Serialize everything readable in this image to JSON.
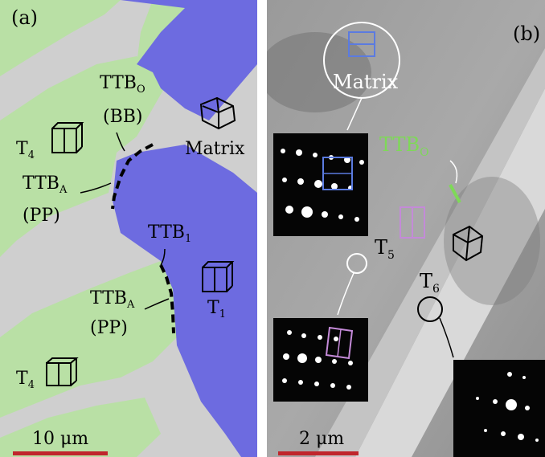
{
  "panel_a": {
    "label": "(a)",
    "scale_bar": "10 μm",
    "annotations": {
      "ttb_o": {
        "base": "TTB",
        "sub": "O"
      },
      "bb": "(BB)",
      "ttb_a_upper": {
        "base": "TTB",
        "sub": "A"
      },
      "pp_upper": "(PP)",
      "ttb_1": {
        "base": "TTB",
        "sub": "1"
      },
      "ttb_a_lower": {
        "base": "TTB",
        "sub": "A"
      },
      "pp_lower": "(PP)",
      "t4_upper": {
        "base": "T",
        "sub": "4"
      },
      "t4_lower": {
        "base": "T",
        "sub": "4"
      },
      "t1": {
        "base": "T",
        "sub": "1"
      },
      "matrix": "Matrix"
    },
    "colors": {
      "matrix_grain": "#6d6be0",
      "twin_grain": "#b9e0a5",
      "background": "#cfcfcf",
      "boundary": "#000000"
    }
  },
  "panel_b": {
    "label": "(b)",
    "scale_bar": "2 μm",
    "annotations": {
      "matrix": "Matrix",
      "ttb_o": {
        "base": "TTB",
        "sub": "O"
      },
      "t5": {
        "base": "T",
        "sub": "5"
      },
      "t6": {
        "base": "T",
        "sub": "6"
      }
    },
    "colors": {
      "ttb_o_label": "#7ed957",
      "matrix_square": "#5b7be0",
      "t5_square": "#c48ad8",
      "scale_bar": "#c0262c"
    }
  }
}
